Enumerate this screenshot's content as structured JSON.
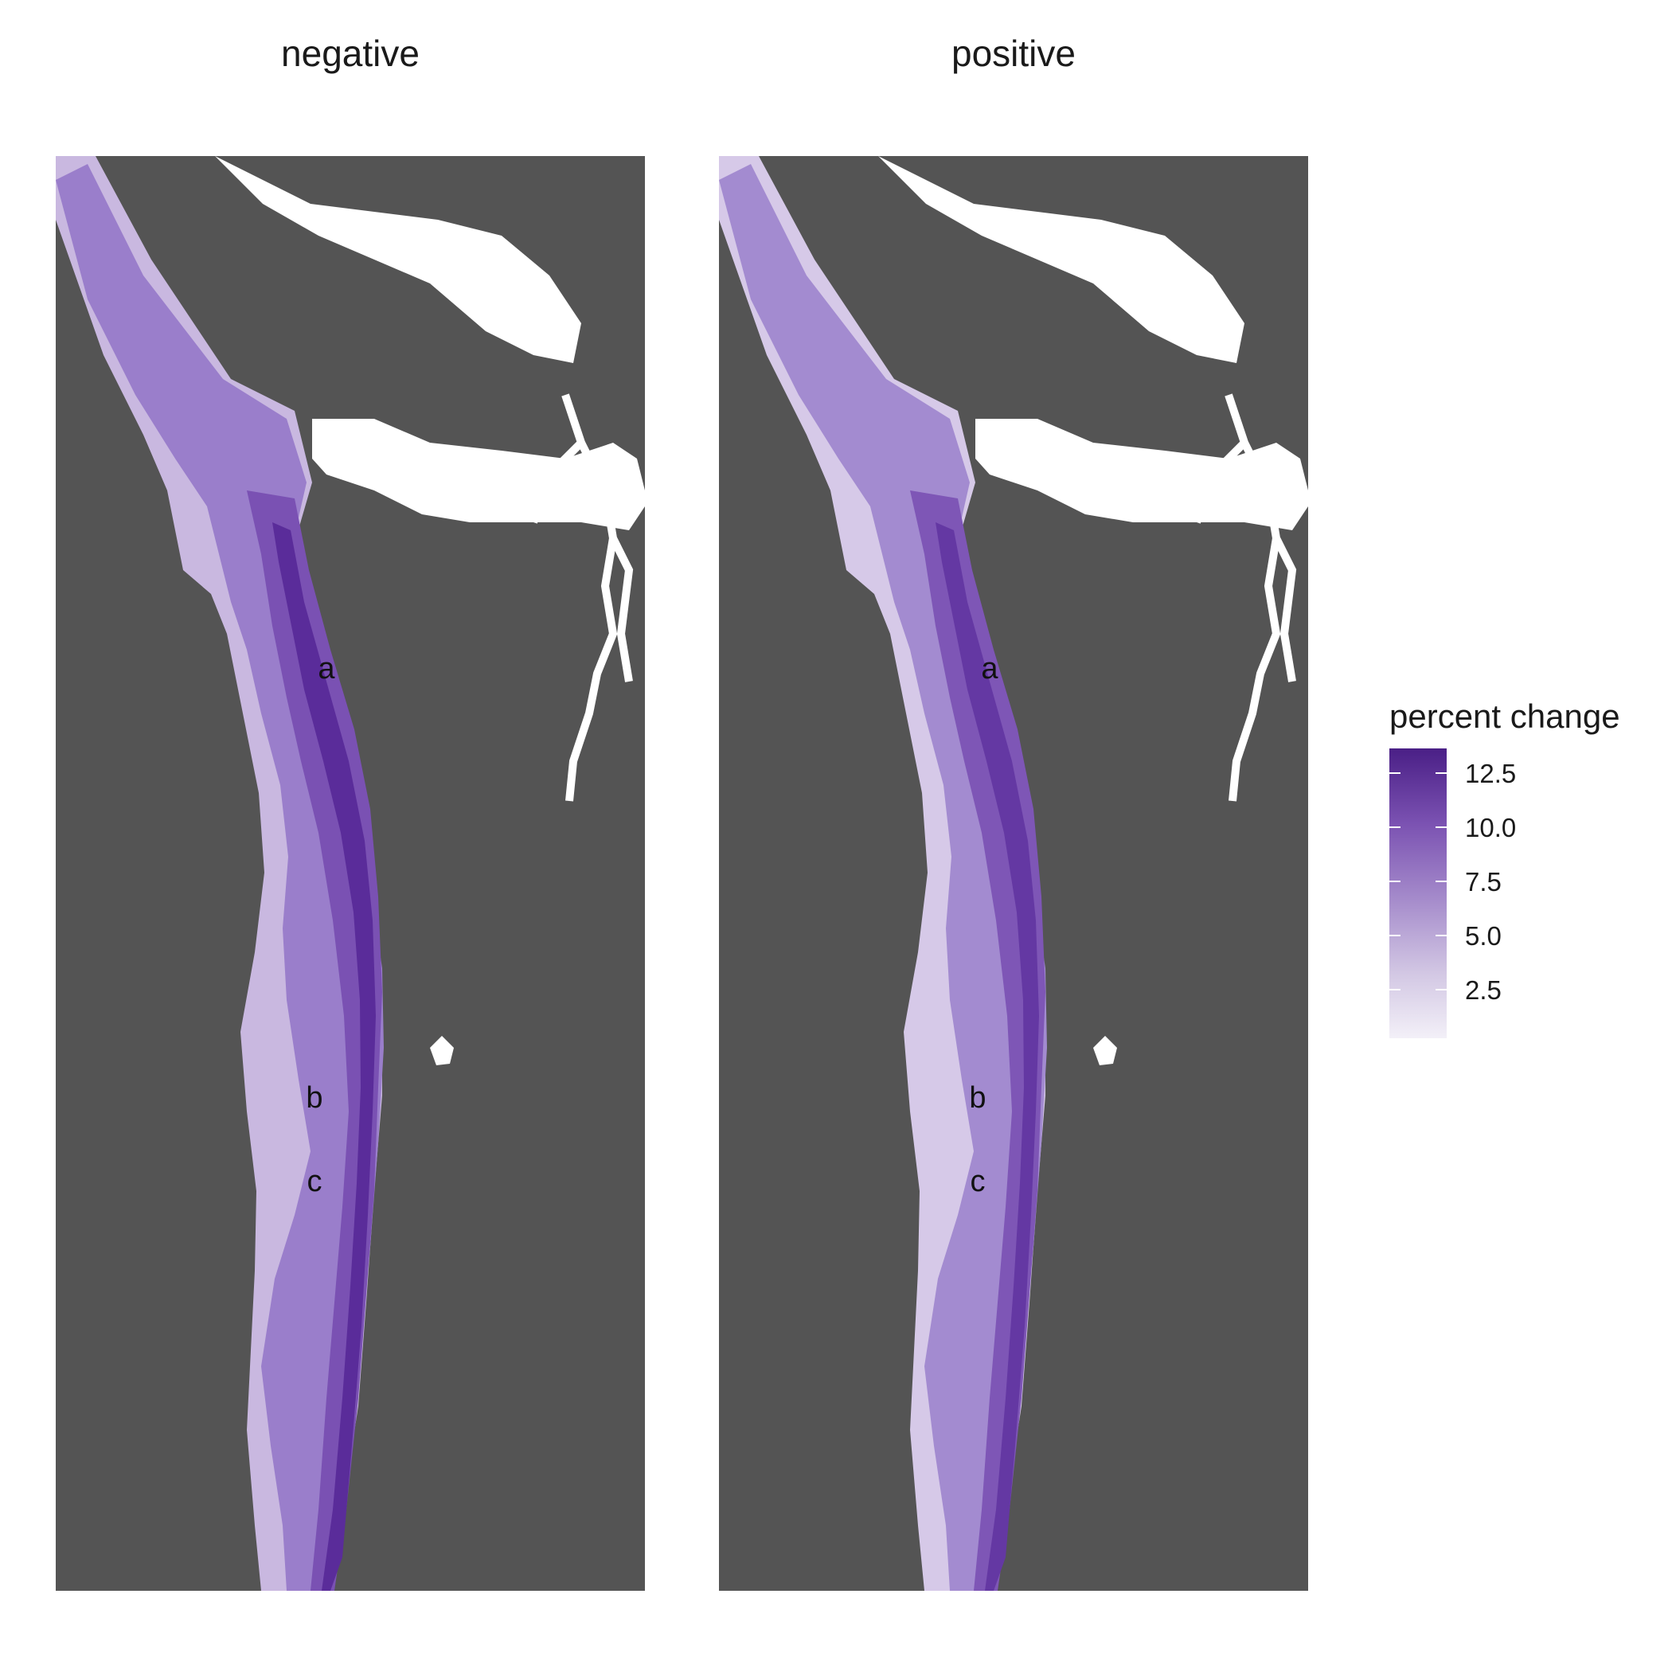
{
  "panels": [
    {
      "title": "negative"
    },
    {
      "title": "positive"
    }
  ],
  "site_labels": [
    "a",
    "b",
    "c"
  ],
  "legend": {
    "title": "percent change",
    "ticks": [
      "12.5",
      "10.0",
      "7.5",
      "5.0",
      "2.5"
    ],
    "min": 0.5,
    "max": 13.8,
    "colors": {
      "low": "#f3f0f8",
      "mid": "#8f6cbf",
      "high": "#4a1f86"
    }
  },
  "colors": {
    "land": "#545454",
    "water": "#ffffff",
    "background": "#ffffff"
  }
}
